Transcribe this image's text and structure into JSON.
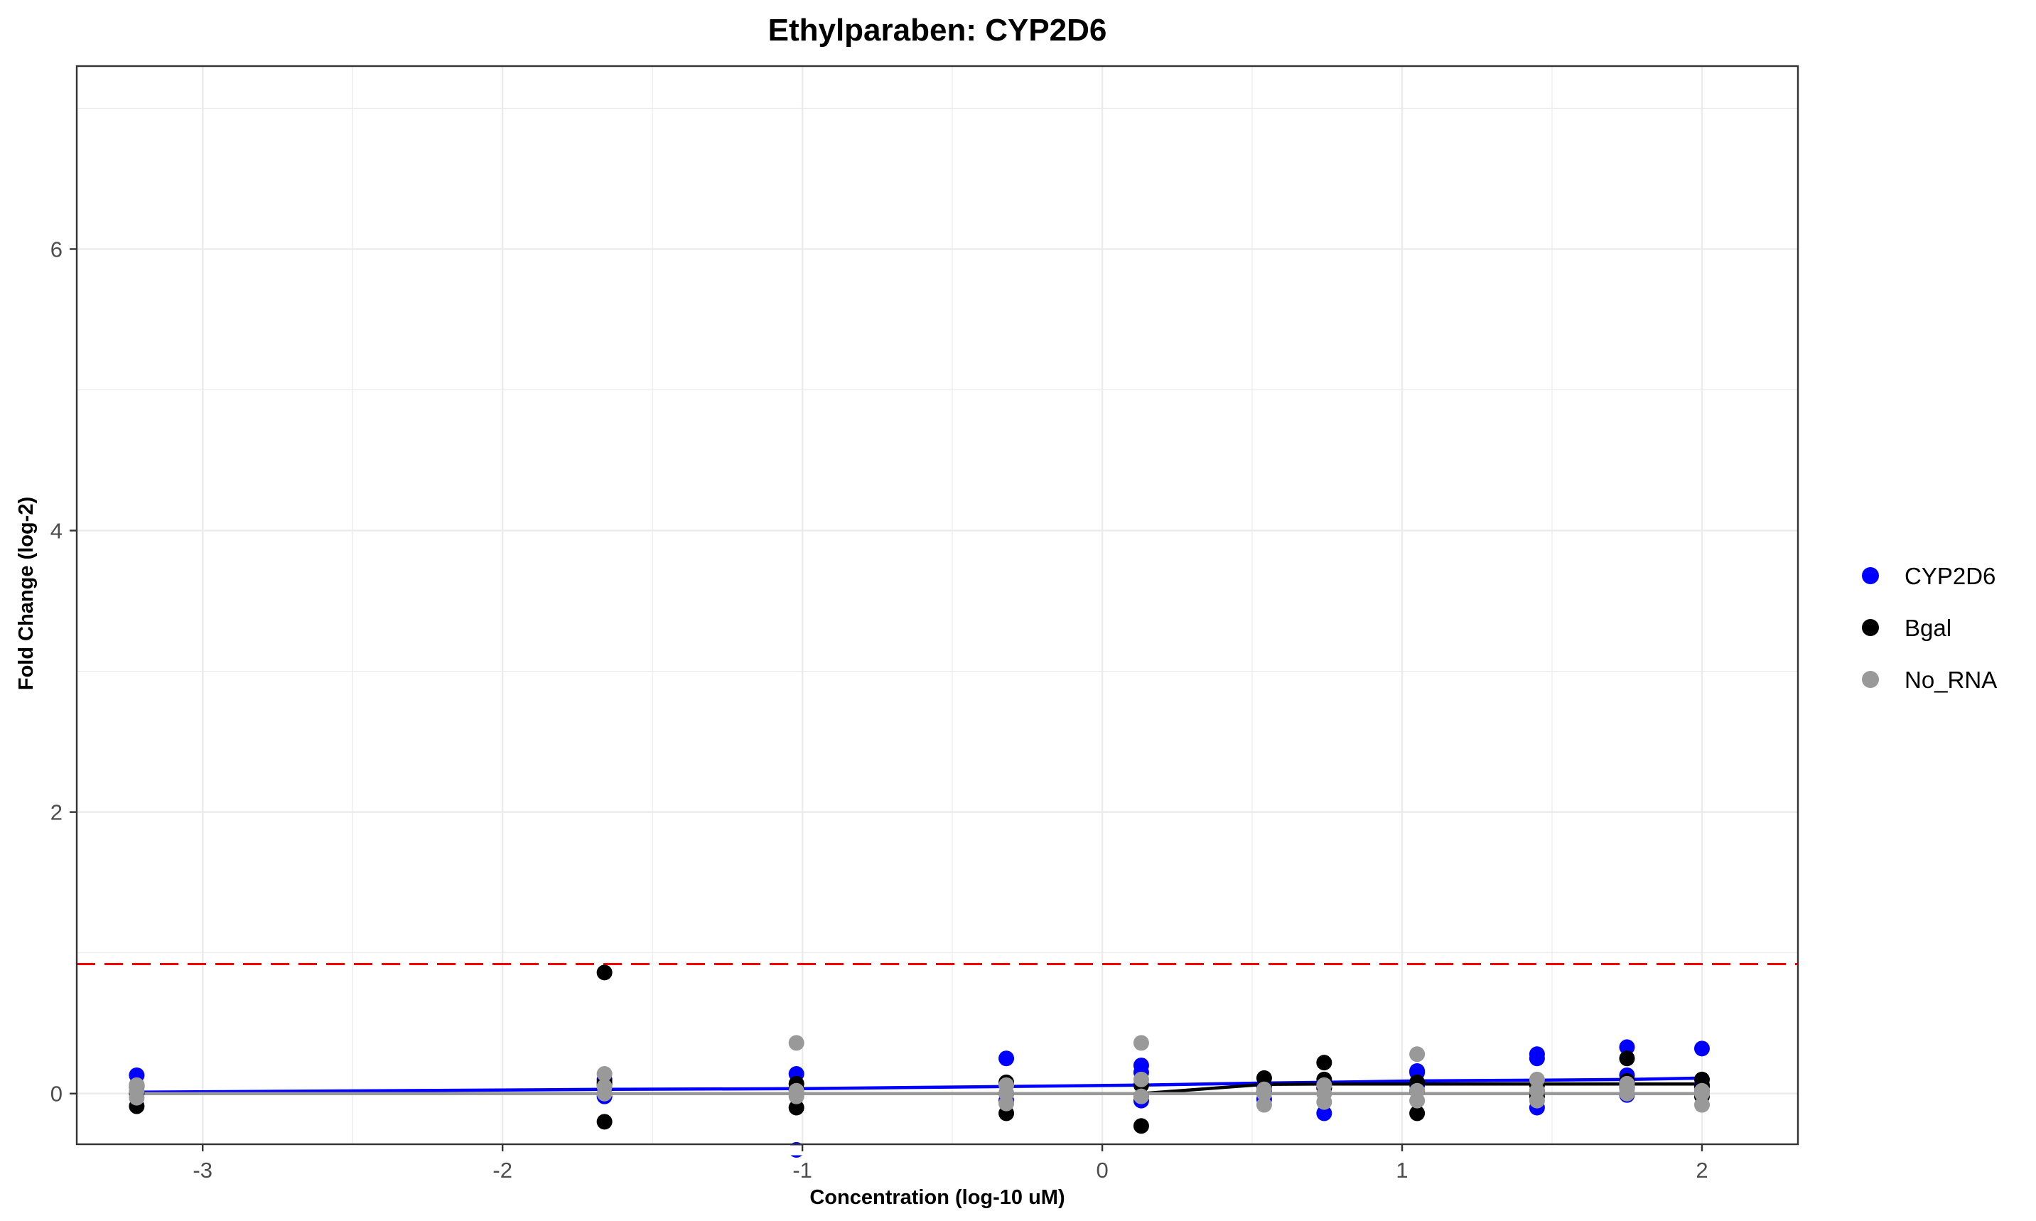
{
  "chart_data": {
    "type": "scatter",
    "title": "Ethylparaben: CYP2D6",
    "xlabel": "Concentration (log-10 uM)",
    "ylabel": "Fold Change (log-2)",
    "xlim": [
      -3.42,
      2.32
    ],
    "ylim": [
      -0.36,
      7.3
    ],
    "xticks": [
      -3,
      -2,
      -1,
      0,
      1,
      2
    ],
    "xtick_labels": [
      "-3",
      "-2",
      "-1",
      "0",
      "1",
      "2"
    ],
    "yticks": [
      0,
      2,
      4,
      6
    ],
    "ytick_labels": [
      "0",
      "2",
      "4",
      "6"
    ],
    "grid": true,
    "legend_position": "right",
    "threshold": {
      "y": 0.92,
      "color": "#ff0000",
      "style": "dashed"
    },
    "series": [
      {
        "name": "CYP2D6",
        "color": "#0000ff",
        "points": [
          [
            -3.22,
            0.13
          ],
          [
            -3.22,
            0.05
          ],
          [
            -3.22,
            0.0
          ],
          [
            -1.66,
            -0.02
          ],
          [
            -1.66,
            0.06
          ],
          [
            -1.66,
            0.1
          ],
          [
            -1.02,
            0.14
          ],
          [
            -1.02,
            -0.4
          ],
          [
            -1.02,
            0.03
          ],
          [
            -0.32,
            0.25
          ],
          [
            -0.32,
            0.07
          ],
          [
            -0.32,
            -0.05
          ],
          [
            0.13,
            0.2
          ],
          [
            0.13,
            0.15
          ],
          [
            0.13,
            -0.05
          ],
          [
            0.54,
            0.05
          ],
          [
            0.54,
            0.02
          ],
          [
            0.54,
            -0.04
          ],
          [
            0.74,
            -0.14
          ],
          [
            0.74,
            0.04
          ],
          [
            0.74,
            0.08
          ],
          [
            1.05,
            0.16
          ],
          [
            1.05,
            0.15
          ],
          [
            1.05,
            0.06
          ],
          [
            1.45,
            0.28
          ],
          [
            1.45,
            0.25
          ],
          [
            1.45,
            -0.1
          ],
          [
            1.75,
            0.33
          ],
          [
            1.75,
            0.13
          ],
          [
            1.75,
            -0.01
          ],
          [
            2.0,
            0.32
          ],
          [
            2.0,
            0.06
          ],
          [
            2.0,
            0.02
          ]
        ],
        "fit": [
          [
            -3.22,
            0.01
          ],
          [
            -1.66,
            0.03
          ],
          [
            -1.02,
            0.035
          ],
          [
            -0.32,
            0.05
          ],
          [
            0.13,
            0.06
          ],
          [
            0.54,
            0.075
          ],
          [
            0.74,
            0.08
          ],
          [
            1.05,
            0.09
          ],
          [
            1.45,
            0.095
          ],
          [
            1.75,
            0.1
          ],
          [
            2.0,
            0.11
          ]
        ]
      },
      {
        "name": "Bgal",
        "color": "#000000",
        "points": [
          [
            -3.22,
            -0.09
          ],
          [
            -3.22,
            0.06
          ],
          [
            -3.22,
            0.01
          ],
          [
            -1.66,
            0.86
          ],
          [
            -1.66,
            -0.2
          ],
          [
            -1.66,
            0.08
          ],
          [
            -1.02,
            -0.1
          ],
          [
            -1.02,
            0.07
          ],
          [
            -1.02,
            0.03
          ],
          [
            -0.32,
            -0.14
          ],
          [
            -0.32,
            0.08
          ],
          [
            -0.32,
            0.0
          ],
          [
            0.13,
            -0.23
          ],
          [
            0.13,
            0.06
          ],
          [
            0.13,
            -0.02
          ],
          [
            0.54,
            0.11
          ],
          [
            0.54,
            0.04
          ],
          [
            0.54,
            0.02
          ],
          [
            0.74,
            0.22
          ],
          [
            0.74,
            0.1
          ],
          [
            0.74,
            0.04
          ],
          [
            1.05,
            -0.14
          ],
          [
            1.05,
            0.08
          ],
          [
            1.05,
            0.02
          ],
          [
            1.45,
            0.06
          ],
          [
            1.45,
            0.02
          ],
          [
            1.45,
            -0.02
          ],
          [
            1.75,
            0.25
          ],
          [
            1.75,
            0.09
          ],
          [
            1.75,
            0.04
          ],
          [
            2.0,
            0.1
          ],
          [
            2.0,
            0.05
          ],
          [
            2.0,
            -0.02
          ]
        ],
        "fit": [
          [
            -3.22,
            0.0
          ],
          [
            -1.66,
            0.0
          ],
          [
            -1.02,
            0.0
          ],
          [
            -0.32,
            0.0
          ],
          [
            0.13,
            0.0
          ],
          [
            0.54,
            0.065
          ],
          [
            0.74,
            0.068
          ],
          [
            1.05,
            0.068
          ],
          [
            1.45,
            0.068
          ],
          [
            1.75,
            0.068
          ],
          [
            2.0,
            0.068
          ]
        ]
      },
      {
        "name": "No_RNA",
        "color": "#999999",
        "points": [
          [
            -3.22,
            0.02
          ],
          [
            -3.22,
            0.06
          ],
          [
            -3.22,
            -0.03
          ],
          [
            -1.66,
            0.14
          ],
          [
            -1.66,
            0.05
          ],
          [
            -1.66,
            0.0
          ],
          [
            -1.02,
            0.36
          ],
          [
            -1.02,
            0.02
          ],
          [
            -1.02,
            -0.02
          ],
          [
            -0.32,
            0.06
          ],
          [
            -0.32,
            -0.07
          ],
          [
            -0.32,
            0.0
          ],
          [
            0.13,
            0.36
          ],
          [
            0.13,
            0.1
          ],
          [
            0.13,
            -0.02
          ],
          [
            0.54,
            0.03
          ],
          [
            0.54,
            -0.08
          ],
          [
            0.54,
            0.0
          ],
          [
            0.74,
            0.06
          ],
          [
            0.74,
            -0.06
          ],
          [
            0.74,
            0.0
          ],
          [
            1.05,
            0.28
          ],
          [
            1.05,
            -0.05
          ],
          [
            1.05,
            0.02
          ],
          [
            1.45,
            0.1
          ],
          [
            1.45,
            -0.05
          ],
          [
            1.45,
            0.02
          ],
          [
            1.75,
            0.07
          ],
          [
            1.75,
            0.03
          ],
          [
            1.75,
            0.0
          ],
          [
            2.0,
            0.02
          ],
          [
            2.0,
            -0.08
          ],
          [
            2.0,
            0.0
          ]
        ],
        "fit": [
          [
            -3.22,
            0.0
          ],
          [
            2.0,
            0.0
          ]
        ]
      }
    ]
  }
}
